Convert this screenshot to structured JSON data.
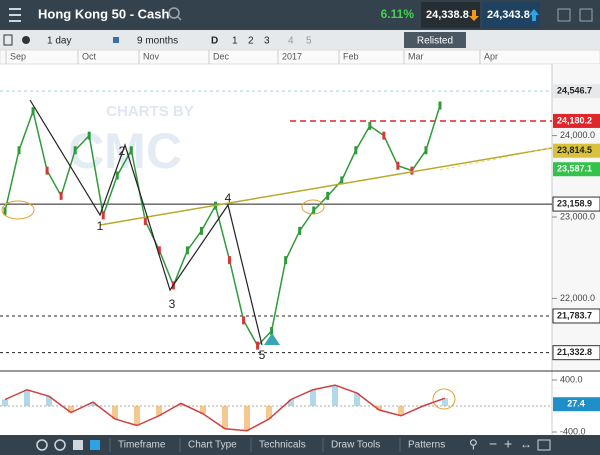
{
  "header": {
    "instrument": "Hong Kong 50 - Cash",
    "change": "6.11%",
    "sell": "24,338.8",
    "buy": "24,343.8"
  },
  "toolbar": {
    "interval": "1 day",
    "range": "9 months",
    "items": [
      "D",
      "1",
      "2",
      "3",
      "4",
      "5"
    ],
    "button": "Relisted"
  },
  "chart": {
    "months": [
      "Sep",
      "Oct",
      "Nov",
      "Dec",
      "2017",
      "Feb",
      "Mar",
      "Apr"
    ],
    "watermark": "CHARTS BY",
    "watermark_logo": "CMC",
    "ylim": [
      21120,
      24880
    ],
    "yticks": [
      {
        "value": 24000,
        "label": "24,000.0"
      },
      {
        "value": 23000,
        "label": "23,000.0"
      },
      {
        "value": 22000,
        "label": "22,000.0"
      }
    ],
    "price_tags": [
      {
        "value": 24546.7,
        "label": "24,546.7",
        "color": "#e6e8ea"
      },
      {
        "value": 24180.2,
        "label": "24,180.2",
        "color": "#e0262b"
      },
      {
        "value": 23814.5,
        "label": "23,814.5",
        "color": "#d8c23a"
      },
      {
        "value": 23587.1,
        "label": "23,587.1",
        "color": "#33c24a"
      },
      {
        "value": 23158.9,
        "label": "23,158.9",
        "color": "#ffffff"
      },
      {
        "value": 21783.7,
        "label": "21,783.7",
        "color": "#ffffff"
      },
      {
        "value": 21332.8,
        "label": "21,332.8",
        "color": "#ffffff"
      }
    ],
    "patterns": [
      "1",
      "2",
      "3",
      "4",
      "5"
    ],
    "price": [
      23070,
      23820,
      24300,
      23570,
      23260,
      23820,
      24000,
      23020,
      23510,
      23820,
      22950,
      22590,
      22160,
      22590,
      22830,
      23140,
      22470,
      21730,
      21420,
      21600,
      22470,
      22830,
      23080,
      23260,
      23450,
      23820,
      24120,
      24000,
      23630,
      23570,
      23820,
      24370
    ]
  },
  "oscillator": {
    "ylim": [
      -446,
      523
    ],
    "yticks": [
      {
        "value": 400,
        "label": "400.0"
      },
      {
        "value": -400,
        "label": "-400.0"
      }
    ],
    "tag": {
      "value": 27.4,
      "label": "27.4"
    },
    "values": [
      100,
      250,
      150,
      -100,
      60,
      -200,
      -300,
      -150,
      40,
      -120,
      -350,
      -380,
      -200,
      100,
      250,
      320,
      200,
      -60,
      -150,
      0,
      120
    ]
  },
  "bottom": [
    "Timeframe",
    "Chart Type",
    "Technicals",
    "Draw Tools",
    "Patterns"
  ]
}
